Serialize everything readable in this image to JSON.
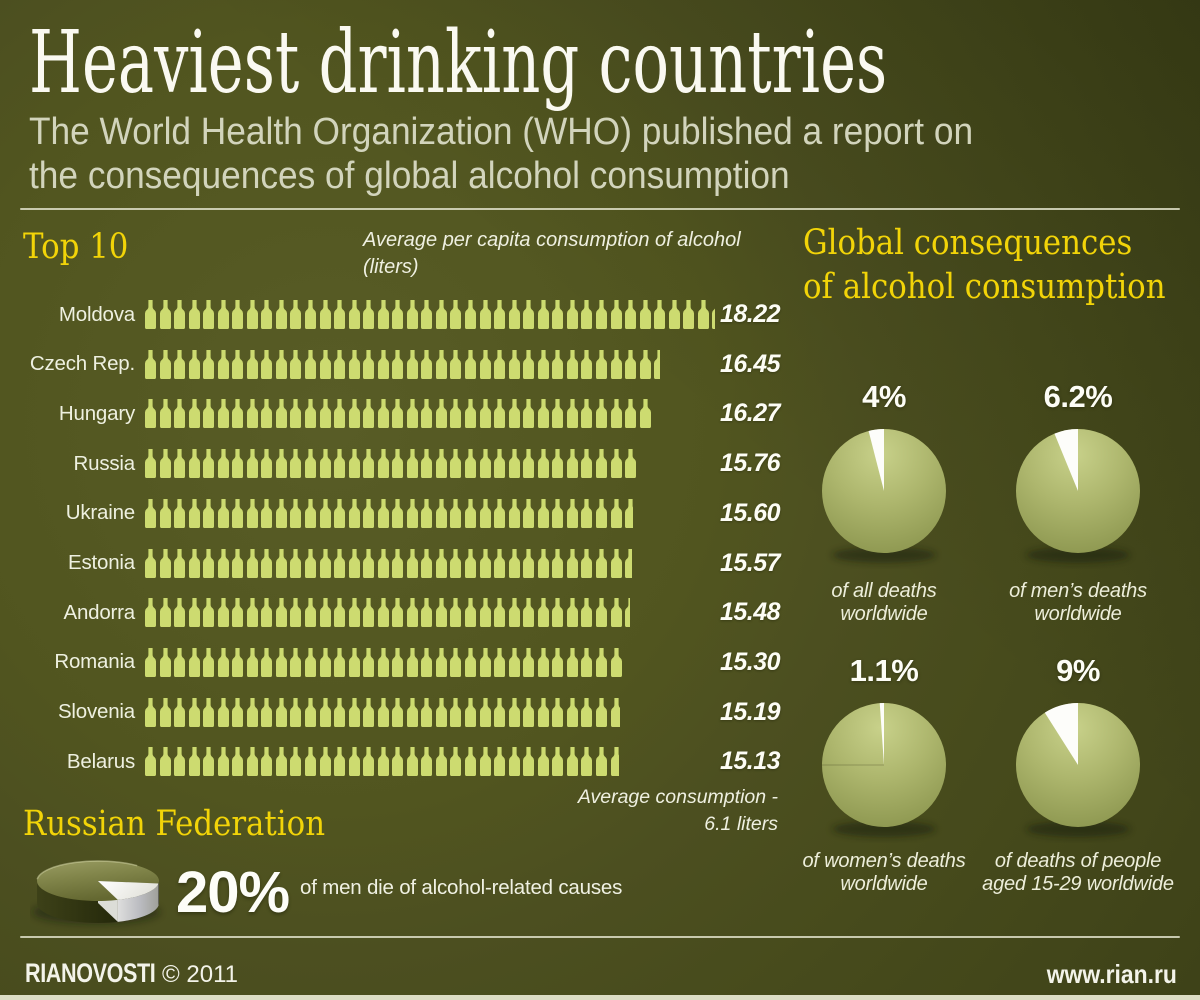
{
  "colors": {
    "background_olive": "#4b4f1e",
    "accent_yellow": "#f2d408",
    "bottle_green": "#cddb70",
    "pie_green_light": "#c3cc85",
    "pie_green_dark": "#8f9950",
    "wedge_white": "#ffffff",
    "text_white": "#f7f7ee"
  },
  "header": {
    "title": "Heaviest drinking countries",
    "subtitle_line1": "The World Health Organization (WHO) published a report on",
    "subtitle_line2": "the consequences of global alcohol consumption"
  },
  "chart_data": [
    {
      "type": "bar",
      "variant": "pictogram-bottles",
      "title": "Top 10",
      "icon": "bottle-icon",
      "unit_note_lines": [
        "Average per capita consumption of alcohol",
        "(liters)"
      ],
      "categories": [
        "Moldova",
        "Czech Rep.",
        "Hungary",
        "Russia",
        "Ukraine",
        "Estonia",
        "Andorra",
        "Romania",
        "Slovenia",
        "Belarus"
      ],
      "values": [
        18.22,
        16.45,
        16.27,
        15.76,
        15.6,
        15.57,
        15.48,
        15.3,
        15.19,
        15.13
      ],
      "xlabel": "liters per capita",
      "xlim": [
        0,
        18.5
      ],
      "annotation_lines": [
        "Average consumption -",
        "6.1 liters"
      ]
    },
    {
      "type": "pie",
      "title": "Global consequences of alcohol consumption",
      "title_lines": [
        "Global consequences",
        "of alcohol consumption"
      ],
      "pies": [
        {
          "label": "4%",
          "value": 4,
          "caption_lines": [
            "of all deaths",
            "worldwide"
          ]
        },
        {
          "label": "6.2%",
          "value": 6.2,
          "caption_lines": [
            "of men’s deaths",
            "worldwide"
          ]
        },
        {
          "label": "1.1%",
          "value": 1.1,
          "caption_lines": [
            "of women’s deaths",
            "worldwide"
          ]
        },
        {
          "label": "9%",
          "value": 9,
          "caption_lines": [
            "of deaths of people",
            "aged 15-29 worldwide"
          ]
        }
      ]
    },
    {
      "type": "pie",
      "variant": "pie3d",
      "title": "Russian Federation",
      "slices": [
        {
          "label": "20%",
          "value": 20
        },
        {
          "label": "",
          "value": 80
        }
      ],
      "caption": "of men die of alcohol-related causes"
    }
  ],
  "footer": {
    "brand": "RIANOVOSTI",
    "copyright": "© 2011",
    "site": "www.rian.ru"
  }
}
